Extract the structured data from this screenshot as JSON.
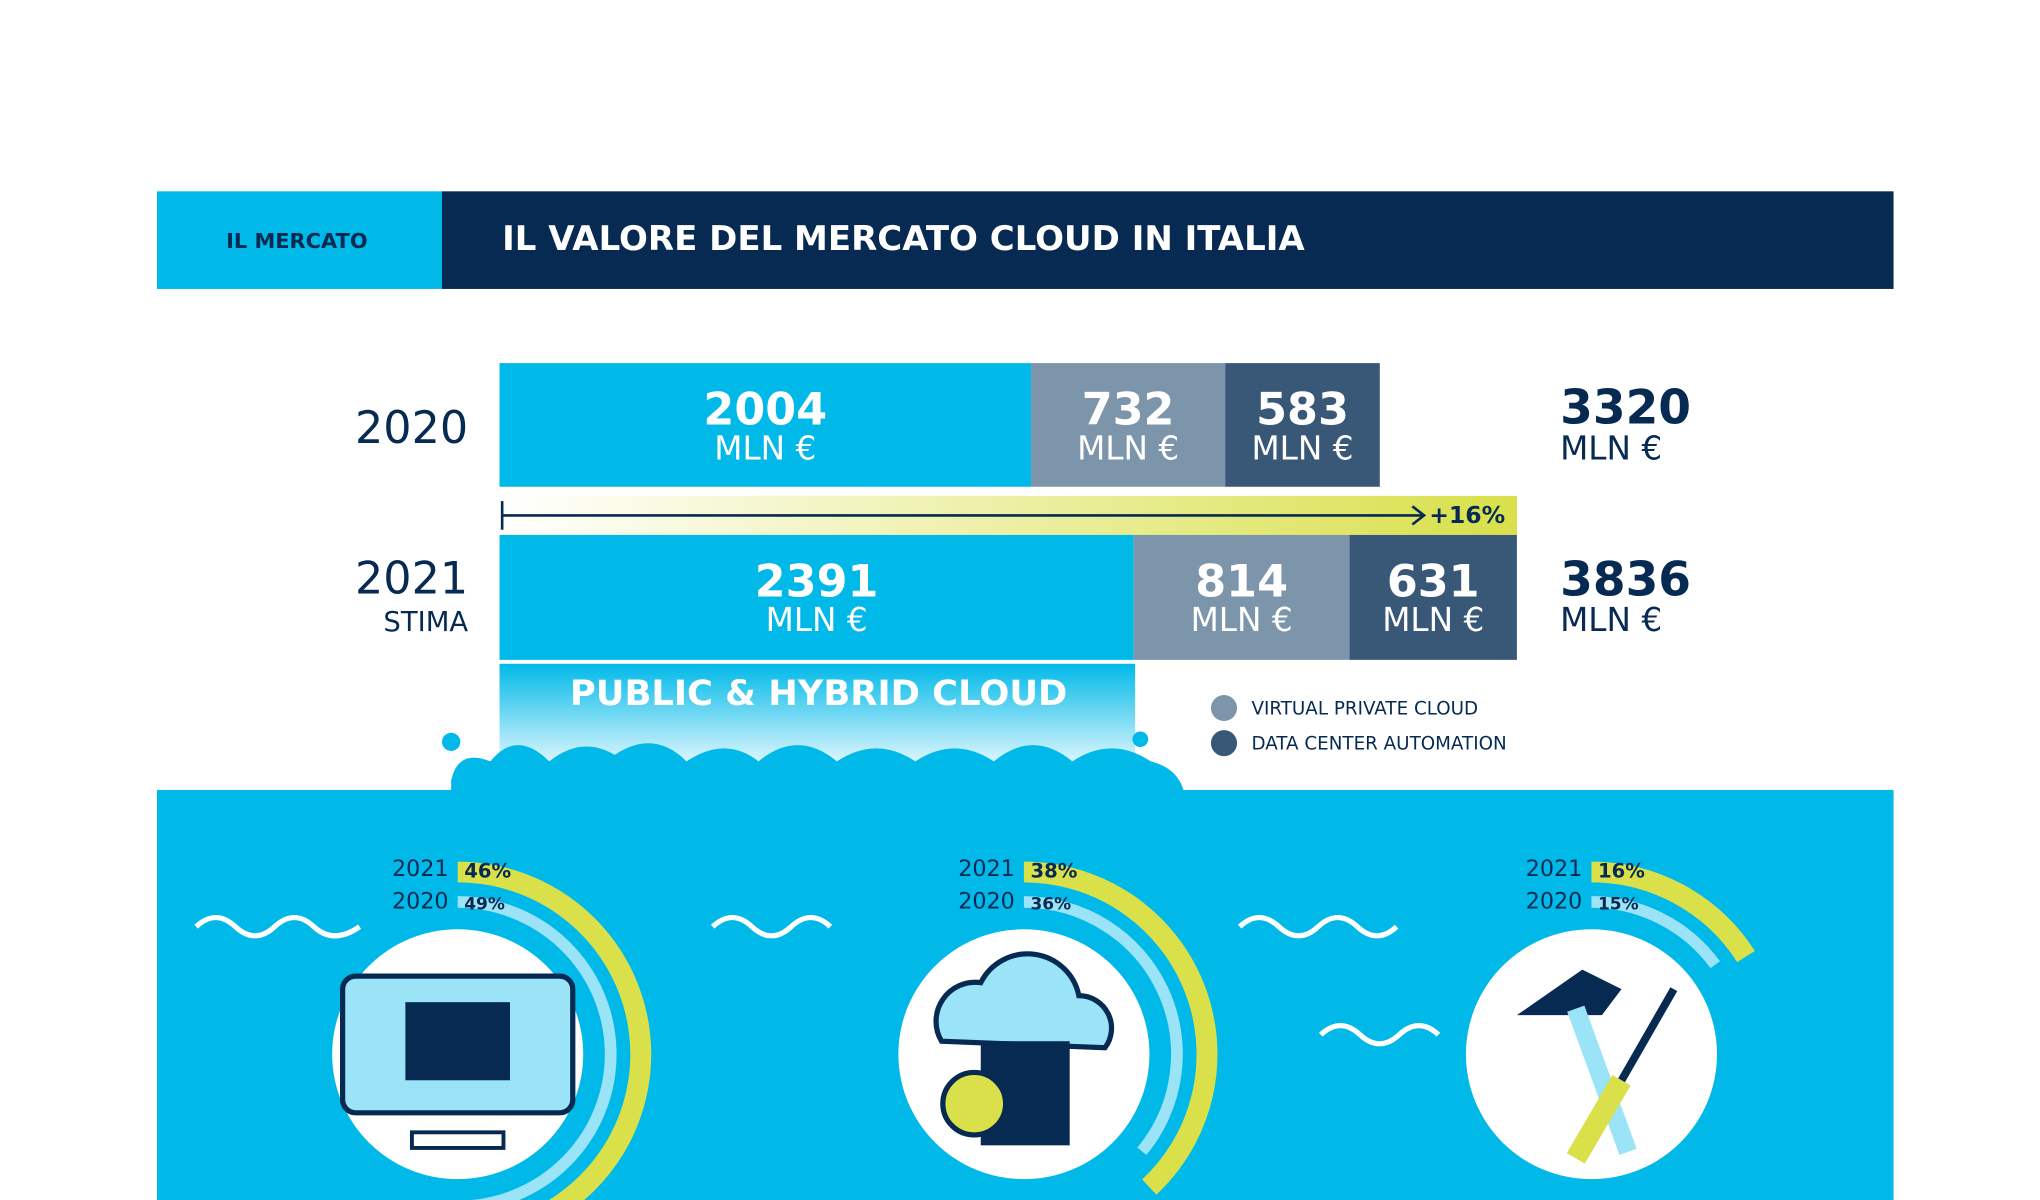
{
  "header": {
    "section": "IL MERCATO"
  },
  "chart_data": [
    {
      "type": "stacked-bar",
      "title": "IL VALORE DEL MERCATO CLOUD IN ITALIA",
      "categories": [
        "2020",
        "2021"
      ],
      "category_sublabels": [
        null,
        "STIMA"
      ],
      "unit": "MLN €",
      "series": [
        {
          "name": "PUBLIC & HYBRID CLOUD",
          "color": "#00b9e8",
          "values": [
            2004,
            2391
          ]
        },
        {
          "name": "VIRTUAL PRIVATE CLOUD",
          "color": "#7d95aa",
          "values": [
            732,
            814
          ]
        },
        {
          "name": "DATA CENTER AUTOMATION",
          "color": "#395878",
          "values": [
            583,
            631
          ]
        }
      ],
      "totals": [
        3320,
        3836
      ],
      "annotation": "+16%"
    },
    {
      "type": "rings",
      "series": [
        {
          "name": "2021",
          "color": "#d9e04a",
          "values": [
            46,
            38,
            16
          ],
          "value_labels": [
            "46%",
            "38%",
            "16%"
          ]
        },
        {
          "name": "2020",
          "color": "#9be3f7",
          "values": [
            49,
            36,
            15
          ],
          "value_labels": [
            "49%",
            "36%",
            "15%"
          ]
        }
      ]
    }
  ]
}
